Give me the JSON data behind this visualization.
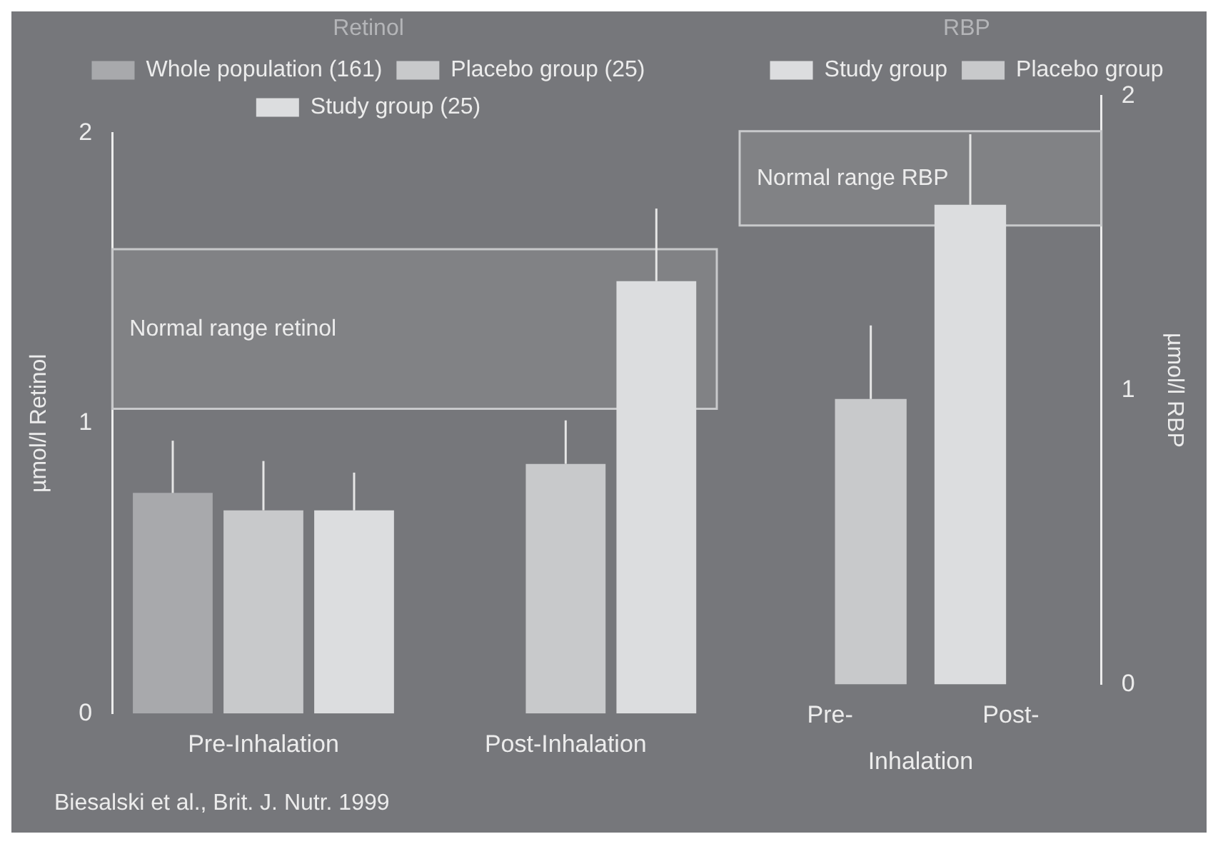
{
  "chart_data": [
    {
      "type": "bar",
      "categories": [
        "Pre-Inhalation",
        "Post-Inhalation"
      ],
      "ylabel": "µmol/l Retinol",
      "ylim": [
        0,
        2
      ],
      "yticks": [
        0,
        1,
        2
      ],
      "grid": false,
      "legend": "top",
      "legend_title": "Retinol",
      "series": [
        {
          "name": "Whole population (161)",
          "color": "#a8a9ac",
          "values": [
            0.76,
            null
          ],
          "errors": [
            [
              0.76,
              0.94
            ],
            null
          ]
        },
        {
          "name": "Placebo group (25)",
          "color": "#c8c9cb",
          "values": [
            0.7,
            0.86
          ],
          "errors": [
            [
              0.7,
              0.87
            ],
            [
              0.86,
              1.01
            ]
          ]
        },
        {
          "name": "Study group (25)",
          "color": "#dcdddf",
          "values": [
            0.7,
            1.49
          ],
          "errors": [
            [
              0.7,
              0.83
            ],
            [
              1.49,
              1.74
            ]
          ]
        }
      ],
      "bands": [
        {
          "axis": "y",
          "from": 1.05,
          "to": 1.6,
          "label": "Normal range retinol",
          "color": "#c8c9cb"
        }
      ],
      "annotations": [
        "Biesalski et al., Brit. J. Nutr. 1999"
      ]
    },
    {
      "type": "bar",
      "categories": [
        "Pre-",
        "Post-"
      ],
      "xlabel": "Inhalation",
      "y2label": "µmol/l RBP",
      "y2lim": [
        0,
        2
      ],
      "y2ticks": [
        0,
        1,
        2
      ],
      "grid": false,
      "legend": "top",
      "legend_title": "RBP",
      "series": [
        {
          "name": "Study group",
          "color": "#dcdddf",
          "axis": "y2",
          "values": [
            null,
            1.63
          ],
          "errors": [
            null,
            [
              1.63,
              1.87
            ]
          ]
        },
        {
          "name": "Placebo group",
          "color": "#c8c9cb",
          "axis": "y2",
          "values": [
            0.97,
            null
          ],
          "errors": [
            [
              0.97,
              1.22
            ],
            null
          ]
        }
      ],
      "bands": [
        {
          "axis": "y2",
          "from": 1.56,
          "to": 1.88,
          "label": "Normal range RBP",
          "color": "#c8c9cb"
        }
      ]
    }
  ]
}
